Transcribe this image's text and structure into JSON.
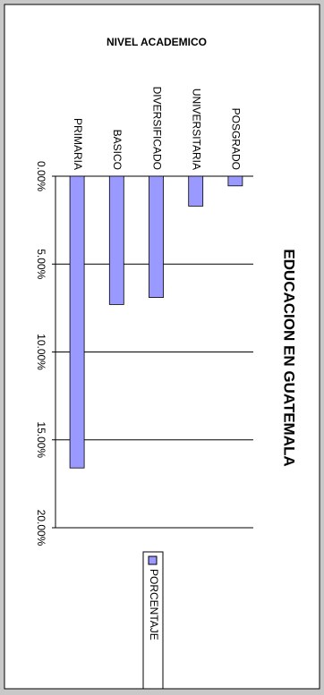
{
  "chart_data": {
    "type": "bar",
    "title": "EDUCACION EN GUATEMALA",
    "x_label": "NIVEL ACADEMICO",
    "categories": [
      "PRIMARIA",
      "BASICO",
      "DIVERSIFICADO",
      "UNIVERSITARIA",
      "POSGRADO"
    ],
    "series": [
      {
        "name": "PORCENTAJE",
        "color": "#9999ff",
        "values": [
          16.6,
          7.3,
          6.9,
          1.7,
          0.55
        ]
      }
    ],
    "ylim": [
      0,
      20
    ],
    "yticks": [
      {
        "value": 0,
        "label": "0.00%"
      },
      {
        "value": 5,
        "label": "5.00%"
      },
      {
        "value": 10,
        "label": "10.00%"
      },
      {
        "value": 15,
        "label": "15.00%"
      },
      {
        "value": 20,
        "label": "20.00%"
      }
    ],
    "grid": true,
    "legend": "bottom"
  }
}
